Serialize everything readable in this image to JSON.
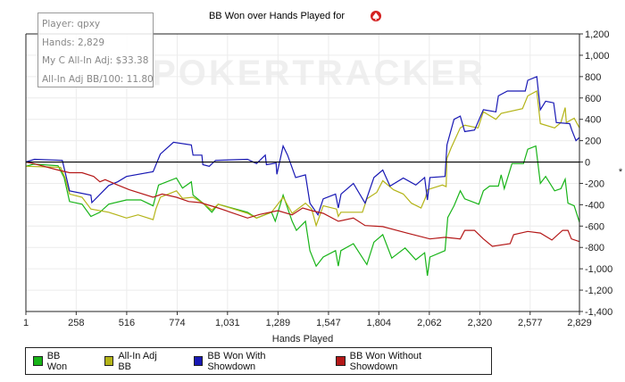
{
  "title": "BB Won over Hands Played for",
  "player_icon": "pokerstars-spade-icon",
  "watermark": "POKERTRACKER",
  "tooltip": {
    "player": "Player: qpxy",
    "hands": "Hands: 2,829",
    "c_all_in_adj": "My C All-In Adj: $33.38",
    "bb100": "All-In Adj BB/100: 11.80"
  },
  "right_marker": "*",
  "legend": [
    {
      "label": "BB Won",
      "color": "#18b418"
    },
    {
      "label": "All-In Adj BB",
      "color": "#b4b418"
    },
    {
      "label": "BB Won With Showdown",
      "color": "#1818b4"
    },
    {
      "label": "BB Won Without Showdown",
      "color": "#b41818"
    }
  ],
  "chart_data": {
    "type": "line",
    "title": "BB Won over Hands Played for qpxy",
    "xlabel": "Hands Played",
    "ylabel": "",
    "xlim": [
      1,
      2829
    ],
    "ylim": [
      -1400,
      1200
    ],
    "xticks": [
      "1",
      "258",
      "516",
      "774",
      "1,031",
      "1,289",
      "1,547",
      "1,804",
      "2,062",
      "2,320",
      "2,577",
      "2,829"
    ],
    "xtick_values": [
      1,
      258,
      516,
      774,
      1031,
      1289,
      1547,
      1804,
      2062,
      2320,
      2577,
      2829
    ],
    "yticks": [
      "1,200",
      "1,000",
      "800",
      "600",
      "400",
      "200",
      "0",
      "-200",
      "-400",
      "-600",
      "-800",
      "-1,000",
      "-1,200",
      "-1,400"
    ],
    "ytick_values": [
      1200,
      1000,
      800,
      600,
      400,
      200,
      0,
      -200,
      -400,
      -600,
      -800,
      -1000,
      -1200,
      -1400
    ],
    "grid": true,
    "legend_position": "bottom",
    "series": [
      {
        "name": "BB Won",
        "color": "#18b418",
        "points": [
          [
            1,
            -40
          ],
          [
            40,
            -20
          ],
          [
            165,
            -35
          ],
          [
            196,
            -145
          ],
          [
            224,
            -370
          ],
          [
            288,
            -395
          ],
          [
            333,
            -510
          ],
          [
            379,
            -470
          ],
          [
            424,
            -395
          ],
          [
            515,
            -355
          ],
          [
            588,
            -355
          ],
          [
            651,
            -410
          ],
          [
            679,
            -215
          ],
          [
            770,
            -150
          ],
          [
            801,
            -245
          ],
          [
            846,
            -185
          ],
          [
            855,
            -310
          ],
          [
            906,
            -385
          ],
          [
            951,
            -470
          ],
          [
            983,
            -395
          ],
          [
            1133,
            -470
          ],
          [
            1179,
            -525
          ],
          [
            1256,
            -470
          ],
          [
            1275,
            -555
          ],
          [
            1315,
            -310
          ],
          [
            1361,
            -555
          ],
          [
            1383,
            -640
          ],
          [
            1429,
            -555
          ],
          [
            1452,
            -830
          ],
          [
            1484,
            -975
          ],
          [
            1520,
            -890
          ],
          [
            1583,
            -830
          ],
          [
            1597,
            -975
          ],
          [
            1610,
            -830
          ],
          [
            1674,
            -765
          ],
          [
            1743,
            -960
          ],
          [
            1779,
            -750
          ],
          [
            1824,
            -680
          ],
          [
            1870,
            -900
          ],
          [
            1938,
            -805
          ],
          [
            1993,
            -915
          ],
          [
            2038,
            -850
          ],
          [
            2052,
            -1065
          ],
          [
            2065,
            -890
          ],
          [
            2142,
            -830
          ],
          [
            2156,
            -520
          ],
          [
            2188,
            -410
          ],
          [
            2220,
            -270
          ],
          [
            2243,
            -345
          ],
          [
            2315,
            -395
          ],
          [
            2338,
            -270
          ],
          [
            2370,
            -225
          ],
          [
            2415,
            -225
          ],
          [
            2429,
            -120
          ],
          [
            2445,
            -250
          ],
          [
            2484,
            -15
          ],
          [
            2543,
            -15
          ],
          [
            2565,
            120
          ],
          [
            2606,
            150
          ],
          [
            2629,
            -200
          ],
          [
            2656,
            -135
          ],
          [
            2702,
            -270
          ],
          [
            2734,
            -250
          ],
          [
            2756,
            -160
          ],
          [
            2770,
            -385
          ],
          [
            2802,
            -410
          ],
          [
            2829,
            -565
          ]
        ]
      },
      {
        "name": "All-In Adj BB",
        "color": "#b4b418",
        "points": [
          [
            1,
            -40
          ],
          [
            178,
            -50
          ],
          [
            201,
            -145
          ],
          [
            224,
            -300
          ],
          [
            288,
            -330
          ],
          [
            333,
            -440
          ],
          [
            424,
            -470
          ],
          [
            515,
            -525
          ],
          [
            574,
            -495
          ],
          [
            651,
            -540
          ],
          [
            665,
            -440
          ],
          [
            688,
            -330
          ],
          [
            770,
            -270
          ],
          [
            801,
            -340
          ],
          [
            855,
            -330
          ],
          [
            906,
            -385
          ],
          [
            951,
            -450
          ],
          [
            983,
            -395
          ],
          [
            1133,
            -480
          ],
          [
            1179,
            -525
          ],
          [
            1256,
            -470
          ],
          [
            1288,
            -395
          ],
          [
            1315,
            -330
          ],
          [
            1361,
            -480
          ],
          [
            1429,
            -385
          ],
          [
            1461,
            -440
          ],
          [
            1484,
            -595
          ],
          [
            1520,
            -410
          ],
          [
            1588,
            -440
          ],
          [
            1597,
            -510
          ],
          [
            1610,
            -470
          ],
          [
            1720,
            -470
          ],
          [
            1743,
            -345
          ],
          [
            1793,
            -285
          ],
          [
            1824,
            -175
          ],
          [
            1879,
            -260
          ],
          [
            1929,
            -300
          ],
          [
            1970,
            -385
          ],
          [
            2020,
            -430
          ],
          [
            2043,
            -330
          ],
          [
            2052,
            -260
          ],
          [
            2129,
            -215
          ],
          [
            2148,
            -230
          ],
          [
            2152,
            35
          ],
          [
            2174,
            135
          ],
          [
            2220,
            320
          ],
          [
            2243,
            345
          ],
          [
            2311,
            320
          ],
          [
            2338,
            470
          ],
          [
            2402,
            400
          ],
          [
            2429,
            455
          ],
          [
            2538,
            500
          ],
          [
            2565,
            620
          ],
          [
            2611,
            665
          ],
          [
            2629,
            360
          ],
          [
            2702,
            320
          ],
          [
            2734,
            370
          ],
          [
            2756,
            510
          ],
          [
            2762,
            370
          ],
          [
            2802,
            410
          ],
          [
            2829,
            320
          ]
        ]
      },
      {
        "name": "BB Won With Showdown",
        "color": "#1818b4",
        "points": [
          [
            1,
            0
          ],
          [
            45,
            25
          ],
          [
            187,
            15
          ],
          [
            224,
            -270
          ],
          [
            333,
            -310
          ],
          [
            338,
            -380
          ],
          [
            424,
            -220
          ],
          [
            470,
            -185
          ],
          [
            515,
            -135
          ],
          [
            651,
            -90
          ],
          [
            688,
            75
          ],
          [
            755,
            185
          ],
          [
            846,
            160
          ],
          [
            855,
            65
          ],
          [
            900,
            65
          ],
          [
            905,
            -25
          ],
          [
            938,
            -40
          ],
          [
            970,
            15
          ],
          [
            1133,
            25
          ],
          [
            1179,
            -15
          ],
          [
            1224,
            65
          ],
          [
            1230,
            -25
          ],
          [
            1279,
            -10
          ],
          [
            1283,
            -115
          ],
          [
            1315,
            150
          ],
          [
            1338,
            65
          ],
          [
            1379,
            -145
          ],
          [
            1429,
            -120
          ],
          [
            1452,
            -385
          ],
          [
            1493,
            -495
          ],
          [
            1520,
            -345
          ],
          [
            1583,
            -300
          ],
          [
            1597,
            -430
          ],
          [
            1611,
            -300
          ],
          [
            1674,
            -200
          ],
          [
            1734,
            -385
          ],
          [
            1779,
            -145
          ],
          [
            1824,
            -75
          ],
          [
            1861,
            -225
          ],
          [
            1929,
            -150
          ],
          [
            1993,
            -215
          ],
          [
            2038,
            -145
          ],
          [
            2052,
            -355
          ],
          [
            2065,
            -145
          ],
          [
            2142,
            -135
          ],
          [
            2152,
            160
          ],
          [
            2188,
            400
          ],
          [
            2220,
            430
          ],
          [
            2243,
            285
          ],
          [
            2293,
            300
          ],
          [
            2338,
            490
          ],
          [
            2402,
            470
          ],
          [
            2415,
            620
          ],
          [
            2461,
            665
          ],
          [
            2552,
            665
          ],
          [
            2565,
            765
          ],
          [
            2611,
            800
          ],
          [
            2629,
            490
          ],
          [
            2656,
            570
          ],
          [
            2697,
            555
          ],
          [
            2711,
            370
          ],
          [
            2779,
            360
          ],
          [
            2790,
            300
          ],
          [
            2811,
            200
          ],
          [
            2829,
            230
          ]
        ]
      },
      {
        "name": "BB Won Without Showdown",
        "color": "#b41818",
        "points": [
          [
            1,
            0
          ],
          [
            40,
            -15
          ],
          [
            165,
            -75
          ],
          [
            224,
            -100
          ],
          [
            288,
            -100
          ],
          [
            347,
            -135
          ],
          [
            379,
            -185
          ],
          [
            406,
            -165
          ],
          [
            470,
            -215
          ],
          [
            529,
            -260
          ],
          [
            651,
            -330
          ],
          [
            697,
            -300
          ],
          [
            770,
            -330
          ],
          [
            833,
            -370
          ],
          [
            892,
            -380
          ],
          [
            983,
            -430
          ],
          [
            1133,
            -525
          ],
          [
            1197,
            -490
          ],
          [
            1288,
            -455
          ],
          [
            1361,
            -495
          ],
          [
            1415,
            -430
          ],
          [
            1461,
            -455
          ],
          [
            1520,
            -480
          ],
          [
            1597,
            -555
          ],
          [
            1674,
            -525
          ],
          [
            1734,
            -595
          ],
          [
            1824,
            -605
          ],
          [
            1947,
            -665
          ],
          [
            2065,
            -720
          ],
          [
            2142,
            -705
          ],
          [
            2220,
            -720
          ],
          [
            2243,
            -640
          ],
          [
            2293,
            -640
          ],
          [
            2338,
            -720
          ],
          [
            2384,
            -790
          ],
          [
            2475,
            -765
          ],
          [
            2493,
            -680
          ],
          [
            2565,
            -650
          ],
          [
            2629,
            -665
          ],
          [
            2688,
            -730
          ],
          [
            2743,
            -640
          ],
          [
            2770,
            -640
          ],
          [
            2788,
            -720
          ],
          [
            2829,
            -745
          ]
        ]
      }
    ]
  }
}
